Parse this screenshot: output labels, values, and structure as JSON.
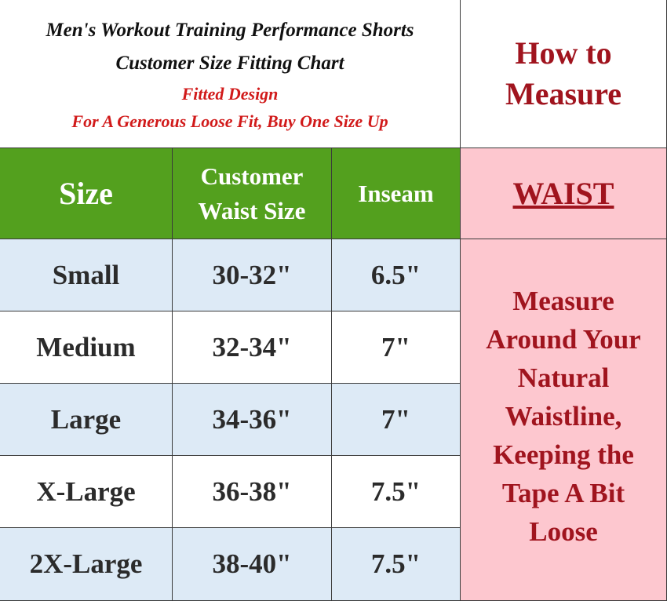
{
  "header": {
    "title_line1": "Men's Workout Training Performance Shorts",
    "title_line2": "Customer Size Fitting Chart",
    "note_line1": "Fitted Design",
    "note_line2": "For A Generous Loose Fit, Buy One Size Up"
  },
  "how_to": {
    "line1": "How to",
    "line2": "Measure"
  },
  "columns": {
    "size": "Size",
    "waist_line1": "Customer",
    "waist_line2": "Waist Size",
    "inseam": "Inseam",
    "measure": "WAIST"
  },
  "rows": [
    {
      "size": "Small",
      "waist": "30-32\"",
      "inseam": "6.5\""
    },
    {
      "size": "Medium",
      "waist": "32-34\"",
      "inseam": "7\""
    },
    {
      "size": "Large",
      "waist": "34-36\"",
      "inseam": "7\""
    },
    {
      "size": "X-Large",
      "waist": "36-38\"",
      "inseam": "7.5\""
    },
    {
      "size": "2X-Large",
      "waist": "38-40\"",
      "inseam": "7.5\""
    }
  ],
  "instructions": "Measure Around Your Natural Waistline, Keeping the Tape A Bit Loose",
  "colors": {
    "header_green": "#53a01e",
    "title_red": "#d11a1a",
    "dark_red": "#a0141e",
    "pink": "#fdc7cf",
    "light_blue": "#ddeaf6"
  }
}
